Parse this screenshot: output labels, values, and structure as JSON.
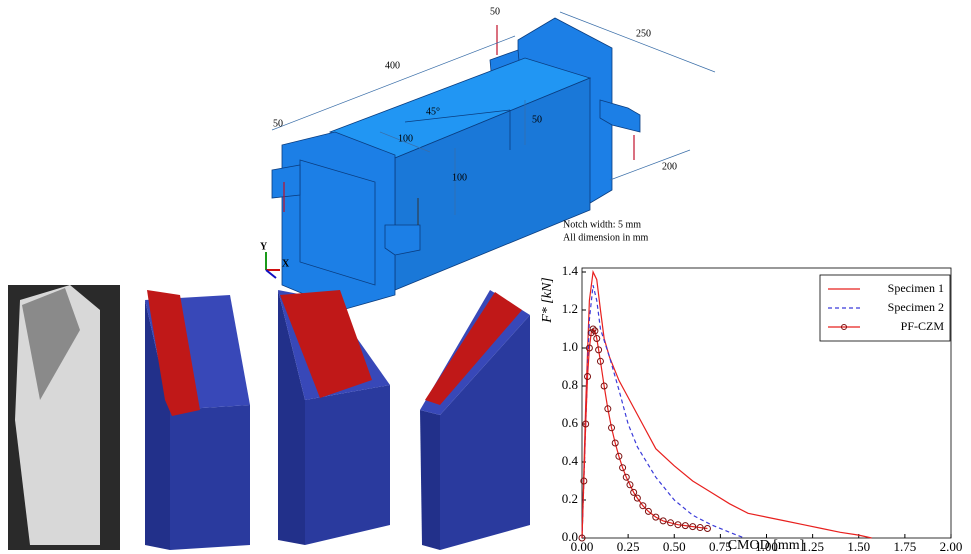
{
  "diagram": {
    "dimension_labels": [
      "50",
      "250",
      "400",
      "45°",
      "50",
      "50",
      "100",
      "100",
      "200"
    ],
    "notes": [
      "Notch width: 5 mm",
      "All dimension in mm"
    ],
    "triad": [
      "Y",
      "X"
    ]
  },
  "chart_data": {
    "type": "line",
    "xlabel": "CMOD [mm]",
    "ylabel": "F* [kN]",
    "xlim": [
      0,
      2
    ],
    "ylim": [
      0,
      1.4
    ],
    "xticks": [
      {
        "value": 0,
        "label": "0.00"
      },
      0.25,
      {
        "value": 0.5,
        "label": "0.50"
      },
      0.75,
      {
        "value": 1,
        "label": "1.00"
      },
      1.25,
      {
        "value": 1.5,
        "label": "1.50"
      },
      1.75,
      {
        "value": 2,
        "label": "2.00"
      }
    ],
    "yticks": [
      {
        "value": 0,
        "label": "0.0"
      },
      0.2,
      0.4,
      0.6,
      0.8,
      {
        "value": 1,
        "label": "1.0"
      },
      1.2,
      1.4
    ],
    "legend": "upper right",
    "series": [
      {
        "name": "Specimen 1",
        "color": "#e8201e",
        "linestyle": "solid",
        "x": [
          0,
          0.02,
          0.04,
          0.06,
          0.08,
          0.1,
          0.12,
          0.15,
          0.2,
          0.25,
          0.3,
          0.4,
          0.5,
          0.6,
          0.7,
          0.8,
          0.9,
          1.0,
          1.1,
          1.2,
          1.3,
          1.4,
          1.5,
          1.57
        ],
        "values": [
          0,
          0.7,
          1.25,
          1.4,
          1.36,
          1.2,
          1.05,
          0.95,
          0.83,
          0.74,
          0.65,
          0.47,
          0.38,
          0.3,
          0.24,
          0.18,
          0.13,
          0.11,
          0.09,
          0.07,
          0.05,
          0.03,
          0.015,
          0
        ]
      },
      {
        "name": "Specimen 2",
        "color": "#3b3bd9",
        "linestyle": "dashed",
        "x": [
          0,
          0.02,
          0.04,
          0.06,
          0.08,
          0.1,
          0.15,
          0.2,
          0.25,
          0.3,
          0.4,
          0.5,
          0.6,
          0.7,
          0.8,
          0.88
        ],
        "values": [
          0,
          0.6,
          1.15,
          1.33,
          1.25,
          1.1,
          0.95,
          0.78,
          0.6,
          0.48,
          0.32,
          0.2,
          0.12,
          0.07,
          0.03,
          0
        ]
      },
      {
        "name": "PF-CZM",
        "color": "#e8201e",
        "linestyle": "solid",
        "marker": "circle",
        "marker_color": "#7a1010",
        "x": [
          0,
          0.01,
          0.02,
          0.03,
          0.04,
          0.05,
          0.06,
          0.07,
          0.08,
          0.09,
          0.1,
          0.12,
          0.14,
          0.16,
          0.18,
          0.2,
          0.22,
          0.24,
          0.26,
          0.28,
          0.3,
          0.33,
          0.36,
          0.4,
          0.44,
          0.48,
          0.52,
          0.56,
          0.6,
          0.64,
          0.68
        ],
        "values": [
          0,
          0.3,
          0.6,
          0.85,
          1.0,
          1.08,
          1.1,
          1.09,
          1.05,
          0.99,
          0.93,
          0.8,
          0.68,
          0.58,
          0.5,
          0.43,
          0.37,
          0.32,
          0.28,
          0.24,
          0.21,
          0.17,
          0.14,
          0.11,
          0.09,
          0.08,
          0.07,
          0.065,
          0.06,
          0.055,
          0.05
        ]
      }
    ]
  }
}
